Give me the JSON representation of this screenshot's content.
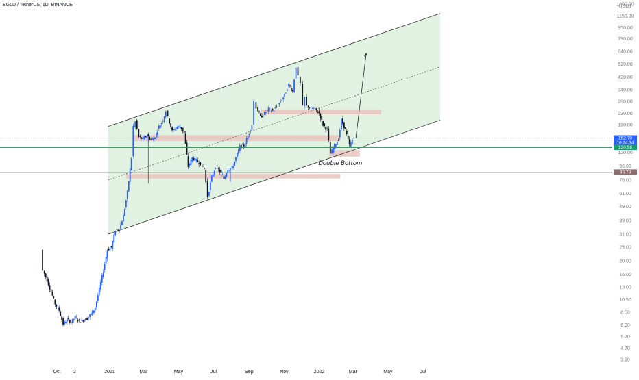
{
  "header": {
    "symbol": "EGLD / TetherUS, 1D, BINANCE",
    "currency": "USDT"
  },
  "colors": {
    "candle_up": "#2962ff",
    "candle_down": "#131722",
    "channel_fill": "#e2f2e2",
    "channel_line": "#2a2a2a",
    "zone_fill": "#e8c4bd",
    "support_line": "#2e8b57",
    "last_price_tag": "#2962ff",
    "line_tag": "#149a6e",
    "low_tag": "#8a6d6d",
    "low_band": "#f3c9d0"
  },
  "chart_data": {
    "type": "candlestick",
    "title": "EGLD / TetherUS, 1D, BINANCE",
    "y_scale": "log",
    "ylim": [
      3.6,
      1500
    ],
    "y_ticks": [
      1400,
      1150,
      950,
      790,
      640,
      520,
      420,
      340,
      280,
      230,
      190,
      150,
      120,
      96,
      76,
      61,
      49,
      39,
      31,
      25,
      20,
      16,
      13,
      10.5,
      8.5,
      6.9,
      5.7,
      4.7,
      3.9
    ],
    "y_tick_labels": [
      "1400.00",
      "1150.00",
      "950.00",
      "790.00",
      "640.00",
      "520.00",
      "420.00",
      "340.00",
      "280.00",
      "230.00",
      "190.00",
      "150.00",
      "120.00",
      "96.00",
      "76.00",
      "61.00",
      "49.00",
      "39.00",
      "31.00",
      "25.00",
      "20.00",
      "16.00",
      "13.00",
      "10.50",
      "8.50",
      "6.90",
      "5.70",
      "4.70",
      "3.90"
    ],
    "x_tick_labels": [
      "Oct",
      "2",
      "2021",
      "Mar",
      "May",
      "Jul",
      "Sep",
      "Nov",
      "2022",
      "Mar",
      "May",
      "Jul"
    ],
    "x_tick_dates": [
      "2020-10-01",
      "2020-11-01",
      "2021-01-01",
      "2021-03-01",
      "2021-05-01",
      "2021-07-01",
      "2021-09-01",
      "2021-11-01",
      "2022-01-01",
      "2022-03-01",
      "2022-05-01",
      "2022-07-01"
    ],
    "price_path": [
      [
        "2020-09-04",
        24.0
      ],
      [
        "2020-09-08",
        17.0
      ],
      [
        "2020-09-15",
        14.5
      ],
      [
        "2020-09-22",
        12.0
      ],
      [
        "2020-09-29",
        9.8
      ],
      [
        "2020-10-06",
        8.8
      ],
      [
        "2020-10-13",
        7.0
      ],
      [
        "2020-10-20",
        7.6
      ],
      [
        "2020-10-27",
        7.2
      ],
      [
        "2020-11-03",
        7.9
      ],
      [
        "2020-11-10",
        7.3
      ],
      [
        "2020-11-17",
        7.5
      ],
      [
        "2020-11-24",
        7.7
      ],
      [
        "2020-12-01",
        8.3
      ],
      [
        "2020-12-08",
        9.2
      ],
      [
        "2020-12-15",
        12.5
      ],
      [
        "2020-12-22",
        17.0
      ],
      [
        "2020-12-29",
        24.0
      ],
      [
        "2021-01-05",
        25.0
      ],
      [
        "2021-01-12",
        33.0
      ],
      [
        "2021-01-19",
        34.0
      ],
      [
        "2021-01-26",
        42.0
      ],
      [
        "2021-02-02",
        62.0
      ],
      [
        "2021-02-09",
        110.0
      ],
      [
        "2021-02-13",
        185.0
      ],
      [
        "2021-02-16",
        200.0
      ],
      [
        "2021-02-22",
        155.0
      ],
      [
        "2021-03-01",
        150.0
      ],
      [
        "2021-03-08",
        160.0
      ],
      [
        "2021-03-15",
        148.0
      ],
      [
        "2021-03-22",
        155.0
      ],
      [
        "2021-03-29",
        185.0
      ],
      [
        "2021-04-05",
        205.0
      ],
      [
        "2021-04-10",
        240.0
      ],
      [
        "2021-04-14",
        215.0
      ],
      [
        "2021-04-21",
        170.0
      ],
      [
        "2021-04-28",
        182.0
      ],
      [
        "2021-05-05",
        185.0
      ],
      [
        "2021-05-12",
        165.0
      ],
      [
        "2021-05-19",
        95.0
      ],
      [
        "2021-05-26",
        110.0
      ],
      [
        "2021-06-02",
        105.0
      ],
      [
        "2021-06-09",
        100.0
      ],
      [
        "2021-06-16",
        92.0
      ],
      [
        "2021-06-22",
        58.0
      ],
      [
        "2021-06-29",
        80.0
      ],
      [
        "2021-07-06",
        95.0
      ],
      [
        "2021-07-13",
        88.0
      ],
      [
        "2021-07-20",
        78.0
      ],
      [
        "2021-07-27",
        92.0
      ],
      [
        "2021-08-03",
        92.0
      ],
      [
        "2021-08-10",
        110.0
      ],
      [
        "2021-08-17",
        132.0
      ],
      [
        "2021-08-24",
        135.0
      ],
      [
        "2021-08-31",
        158.0
      ],
      [
        "2021-09-07",
        190.0
      ],
      [
        "2021-09-11",
        280.0
      ],
      [
        "2021-09-15",
        255.0
      ],
      [
        "2021-09-22",
        215.0
      ],
      [
        "2021-09-29",
        230.0
      ],
      [
        "2021-10-06",
        245.0
      ],
      [
        "2021-10-13",
        240.0
      ],
      [
        "2021-10-20",
        255.0
      ],
      [
        "2021-10-27",
        280.0
      ],
      [
        "2021-11-03",
        310.0
      ],
      [
        "2021-11-10",
        370.0
      ],
      [
        "2021-11-17",
        330.0
      ],
      [
        "2021-11-23",
        500.0
      ],
      [
        "2021-11-27",
        420.0
      ],
      [
        "2021-12-01",
        375.0
      ],
      [
        "2021-12-05",
        255.0
      ],
      [
        "2021-12-08",
        300.0
      ],
      [
        "2021-12-12",
        260.0
      ],
      [
        "2021-12-19",
        250.0
      ],
      [
        "2021-12-26",
        245.0
      ],
      [
        "2022-01-02",
        230.0
      ],
      [
        "2022-01-09",
        190.0
      ],
      [
        "2022-01-16",
        175.0
      ],
      [
        "2022-01-22",
        118.0
      ],
      [
        "2022-01-29",
        135.0
      ],
      [
        "2022-02-05",
        150.0
      ],
      [
        "2022-02-10",
        205.0
      ],
      [
        "2022-02-17",
        175.0
      ],
      [
        "2022-02-24",
        135.0
      ],
      [
        "2022-03-01",
        148.0
      ],
      [
        "2022-03-04",
        152.7
      ]
    ],
    "channel": {
      "lower_line": [
        [
          "2020-12-29",
          31.0
        ],
        [
          "2022-07-31",
          205.0
        ]
      ],
      "upper_line": [
        [
          "2020-12-29",
          185.0
        ],
        [
          "2022-07-31",
          1200.0
        ]
      ],
      "mid_line": [
        [
          "2020-12-29",
          76.0
        ],
        [
          "2022-07-31",
          496.0
        ]
      ]
    },
    "zones": [
      {
        "from": "2021-02-10",
        "to": "2022-02-07",
        "low": 145.0,
        "high": 160.0
      },
      {
        "from": "2021-01-30",
        "to": "2022-02-07",
        "low": 78.0,
        "high": 84.0
      },
      {
        "from": "2021-09-22",
        "to": "2022-04-19",
        "low": 226.0,
        "high": 245.0
      },
      {
        "from": "2022-01-19",
        "to": "2022-03-13",
        "low": 112.0,
        "high": 125.0
      }
    ],
    "projection_arrow": [
      [
        "2022-03-06",
        152.0
      ],
      [
        "2022-03-24",
        620.0
      ]
    ],
    "horizontal_lines": [
      {
        "price": 130.98,
        "label": "130.98"
      },
      {
        "price": 86.73,
        "label": "86.73"
      }
    ],
    "last_price": {
      "value": 152.7,
      "label": "152.70",
      "countdown": "16:24:34"
    },
    "annotations": [
      {
        "text": "Double Bottom",
        "date": "2022-02-14",
        "price": 101.0
      }
    ]
  }
}
